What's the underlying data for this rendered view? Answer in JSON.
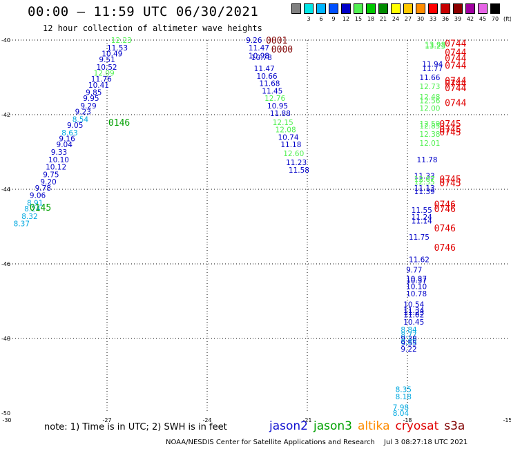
{
  "header": {
    "title": "00:00 – 11:59 UTC 06/30/2021",
    "subtitle": "12 hour collection of altimeter wave heights"
  },
  "colorbar": {
    "unit": "(ft)",
    "items": [
      {
        "label": "",
        "color": "#808080"
      },
      {
        "label": "3",
        "color": "#00e6e6"
      },
      {
        "label": "6",
        "color": "#00b4ff"
      },
      {
        "label": "9",
        "color": "#0050ff"
      },
      {
        "label": "12",
        "color": "#0000c8"
      },
      {
        "label": "15",
        "color": "#50f050"
      },
      {
        "label": "18",
        "color": "#00c800"
      },
      {
        "label": "21",
        "color": "#008c00"
      },
      {
        "label": "24",
        "color": "#ffff00"
      },
      {
        "label": "27",
        "color": "#ffc800"
      },
      {
        "label": "30",
        "color": "#ff8c00"
      },
      {
        "label": "33",
        "color": "#ff0000"
      },
      {
        "label": "36",
        "color": "#c80000"
      },
      {
        "label": "39",
        "color": "#8c0000"
      },
      {
        "label": "42",
        "color": "#a000a0"
      },
      {
        "label": "45",
        "color": "#e664e6"
      },
      {
        "label": "70",
        "color": "#000000"
      }
    ]
  },
  "note": "note:  1) Time is in UTC;  2) SWH is in feet",
  "legend": [
    {
      "name": "jason2",
      "color": "#1010d0"
    },
    {
      "name": "jason3",
      "color": "#00a000"
    },
    {
      "name": "altika",
      "color": "#ff8c00"
    },
    {
      "name": "cryosat",
      "color": "#e00000"
    },
    {
      "name": "s3a",
      "color": "#800000"
    }
  ],
  "footer": {
    "center": "NOAA/NESDIS Center for Satellite Applications and Research",
    "date": "Jul  3 08:27:18 UTC 2021"
  },
  "chart_data": {
    "type": "scatter",
    "title": "00:00 – 11:59 UTC 06/30/2021",
    "subtitle": "12 hour collection of altimeter wave heights",
    "x_ticks": [
      "-30",
      "-27",
      "-24",
      "-21",
      "-18",
      "-15"
    ],
    "y_ticks": [
      "-40",
      "-42",
      "-44",
      "-46",
      "-48",
      "-50"
    ],
    "xlim": [
      -30,
      -15
    ],
    "ylim": [
      -50,
      -40
    ],
    "grid": "dotted",
    "points": [
      {
        "lon": -26.88,
        "lat": -40.0,
        "label": "12.23"
      },
      {
        "lon": -27.0,
        "lat": -40.2,
        "label": "11.53"
      },
      {
        "lon": -27.16,
        "lat": -40.36,
        "label": "10.49"
      },
      {
        "lon": -27.24,
        "lat": -40.52,
        "label": "9.51"
      },
      {
        "lon": -27.32,
        "lat": -40.72,
        "label": "10.52"
      },
      {
        "lon": -27.4,
        "lat": -40.88,
        "label": "12.09"
      },
      {
        "lon": -27.48,
        "lat": -41.04,
        "label": "11.76"
      },
      {
        "lon": -27.56,
        "lat": -41.2,
        "label": "10.41"
      },
      {
        "lon": -27.64,
        "lat": -41.4,
        "label": "9.85"
      },
      {
        "lon": -27.72,
        "lat": -41.56,
        "label": "9.95"
      },
      {
        "lon": -27.8,
        "lat": -41.76,
        "label": "9.29"
      },
      {
        "lon": -27.96,
        "lat": -41.92,
        "label": "9.23"
      },
      {
        "lon": -28.04,
        "lat": -42.12,
        "label": "8.54"
      },
      {
        "lon": -28.2,
        "lat": -42.28,
        "label": "9.05"
      },
      {
        "lon": -28.36,
        "lat": -42.48,
        "label": "8.63"
      },
      {
        "lon": -28.44,
        "lat": -42.64,
        "label": "9.16"
      },
      {
        "lon": -28.52,
        "lat": -42.8,
        "label": "9.04"
      },
      {
        "lon": -28.68,
        "lat": -43.0,
        "label": "9.33"
      },
      {
        "lon": -28.76,
        "lat": -43.2,
        "label": "10.10"
      },
      {
        "lon": -28.84,
        "lat": -43.4,
        "label": "10.12"
      },
      {
        "lon": -28.92,
        "lat": -43.6,
        "label": "9.75"
      },
      {
        "lon": -29.0,
        "lat": -43.8,
        "label": "9.20"
      },
      {
        "lon": -29.16,
        "lat": -43.96,
        "label": "9.78"
      },
      {
        "lon": -29.32,
        "lat": -44.16,
        "label": "9.06"
      },
      {
        "lon": -29.4,
        "lat": -44.36,
        "label": "8.91"
      },
      {
        "lon": -29.48,
        "lat": -44.52,
        "label": "8.24"
      },
      {
        "lon": -29.56,
        "lat": -44.72,
        "label": "8.32"
      },
      {
        "lon": -29.8,
        "lat": -44.92,
        "label": "8.37"
      },
      {
        "lon": -22.84,
        "lat": -40.0,
        "label": "9.26"
      },
      {
        "lon": -22.76,
        "lat": -40.2,
        "label": "11.47"
      },
      {
        "lon": -22.76,
        "lat": -40.42,
        "label": "10.98"
      },
      {
        "lon": -22.68,
        "lat": -40.46,
        "label": "10.78"
      },
      {
        "lon": -22.6,
        "lat": -40.76,
        "label": "11.47"
      },
      {
        "lon": -22.52,
        "lat": -40.96,
        "label": "10.66"
      },
      {
        "lon": -22.44,
        "lat": -41.16,
        "label": "11.68"
      },
      {
        "lon": -22.36,
        "lat": -41.36,
        "label": "11.45"
      },
      {
        "lon": -22.28,
        "lat": -41.56,
        "label": "12.76"
      },
      {
        "lon": -22.2,
        "lat": -41.76,
        "label": "10.95"
      },
      {
        "lon": -22.12,
        "lat": -41.96,
        "label": "11.88"
      },
      {
        "lon": -22.04,
        "lat": -42.2,
        "label": "12.15"
      },
      {
        "lon": -21.96,
        "lat": -42.4,
        "label": "12.08"
      },
      {
        "lon": -21.88,
        "lat": -42.6,
        "label": "10.74"
      },
      {
        "lon": -21.8,
        "lat": -42.8,
        "label": "11.18"
      },
      {
        "lon": -21.72,
        "lat": -43.04,
        "label": "12.60"
      },
      {
        "lon": -21.64,
        "lat": -43.28,
        "label": "11.23"
      },
      {
        "lon": -21.56,
        "lat": -43.48,
        "label": "11.58"
      },
      {
        "lon": -17.48,
        "lat": -40.12,
        "label": "13.98"
      },
      {
        "lon": -17.48,
        "lat": -40.16,
        "label": "13.23"
      },
      {
        "lon": -17.56,
        "lat": -40.64,
        "label": "11.94"
      },
      {
        "lon": -17.56,
        "lat": -40.76,
        "label": "11.77"
      },
      {
        "lon": -17.64,
        "lat": -41.0,
        "label": "11.66"
      },
      {
        "lon": -17.64,
        "lat": -41.24,
        "label": "12.73"
      },
      {
        "lon": -17.64,
        "lat": -41.52,
        "label": "12.48"
      },
      {
        "lon": -17.64,
        "lat": -41.62,
        "label": "12.56"
      },
      {
        "lon": -17.64,
        "lat": -41.82,
        "label": "12.00"
      },
      {
        "lon": -17.64,
        "lat": -42.24,
        "label": "12.59"
      },
      {
        "lon": -17.64,
        "lat": -42.3,
        "label": "12.85"
      },
      {
        "lon": -17.64,
        "lat": -42.52,
        "label": "12.38"
      },
      {
        "lon": -17.64,
        "lat": -42.76,
        "label": "12.01"
      },
      {
        "lon": -17.72,
        "lat": -43.2,
        "label": "11.78"
      },
      {
        "lon": -17.8,
        "lat": -43.64,
        "label": "11.33"
      },
      {
        "lon": -17.8,
        "lat": -43.72,
        "label": "12.07"
      },
      {
        "lon": -17.8,
        "lat": -43.8,
        "label": "12.35"
      },
      {
        "lon": -17.8,
        "lat": -43.96,
        "label": "11.13"
      },
      {
        "lon": -17.8,
        "lat": -44.06,
        "label": "11.39"
      },
      {
        "lon": -17.88,
        "lat": -44.56,
        "label": "11.55"
      },
      {
        "lon": -17.88,
        "lat": -44.74,
        "label": "11.24"
      },
      {
        "lon": -17.88,
        "lat": -44.84,
        "label": "11.14"
      },
      {
        "lon": -17.96,
        "lat": -45.28,
        "label": "11.75"
      },
      {
        "lon": -17.96,
        "lat": -45.88,
        "label": "11.62"
      },
      {
        "lon": -18.04,
        "lat": -46.16,
        "label": "9.77"
      },
      {
        "lon": -18.04,
        "lat": -46.4,
        "label": "10.87"
      },
      {
        "lon": -18.04,
        "lat": -46.44,
        "label": "10.37"
      },
      {
        "lon": -18.04,
        "lat": -46.6,
        "label": "10.10"
      },
      {
        "lon": -18.04,
        "lat": -46.8,
        "label": "10.78"
      },
      {
        "lon": -18.12,
        "lat": -47.08,
        "label": "10.54"
      },
      {
        "lon": -18.12,
        "lat": -47.24,
        "label": "11.34"
      },
      {
        "lon": -18.12,
        "lat": -47.3,
        "label": "11.23"
      },
      {
        "lon": -18.12,
        "lat": -47.36,
        "label": "11.02"
      },
      {
        "lon": -18.12,
        "lat": -47.56,
        "label": "10.45"
      },
      {
        "lon": -18.2,
        "lat": -47.76,
        "label": "8.84"
      },
      {
        "lon": -18.2,
        "lat": -47.9,
        "label": "8.77"
      },
      {
        "lon": -18.2,
        "lat": -48.0,
        "label": "9.38"
      },
      {
        "lon": -18.2,
        "lat": -48.08,
        "label": "8.85"
      },
      {
        "lon": -18.2,
        "lat": -48.12,
        "label": "9.55"
      },
      {
        "lon": -18.2,
        "lat": -48.28,
        "label": "9.22"
      },
      {
        "lon": -18.36,
        "lat": -49.36,
        "label": "8.35"
      },
      {
        "lon": -18.36,
        "lat": -49.56,
        "label": "8.18"
      },
      {
        "lon": -18.44,
        "lat": -49.84,
        "label": "7.98"
      },
      {
        "lon": -18.44,
        "lat": -50.0,
        "label": "8.04"
      }
    ],
    "time_labels": [
      {
        "lon": -22.24,
        "lat": -40.0,
        "label": "0001"
      },
      {
        "lon": -22.08,
        "lat": -40.24,
        "label": "0000"
      },
      {
        "lon": -26.96,
        "lat": -42.2,
        "label": "0146"
      },
      {
        "lon": -29.32,
        "lat": -44.48,
        "label": "0145"
      },
      {
        "lon": -16.88,
        "lat": -40.08,
        "label": "0744"
      },
      {
        "lon": -16.88,
        "lat": -40.32,
        "label": "0744"
      },
      {
        "lon": -16.88,
        "lat": -40.48,
        "label": "0744"
      },
      {
        "lon": -16.88,
        "lat": -40.68,
        "label": "0744"
      },
      {
        "lon": -16.88,
        "lat": -41.08,
        "label": "0744"
      },
      {
        "lon": -16.88,
        "lat": -41.16,
        "label": "0744"
      },
      {
        "lon": -16.88,
        "lat": -41.28,
        "label": "0744"
      },
      {
        "lon": -16.88,
        "lat": -41.68,
        "label": "0744"
      },
      {
        "lon": -17.04,
        "lat": -42.24,
        "label": "0745"
      },
      {
        "lon": -17.04,
        "lat": -42.38,
        "label": "0745"
      },
      {
        "lon": -17.04,
        "lat": -42.46,
        "label": "0745"
      },
      {
        "lon": -17.04,
        "lat": -43.72,
        "label": "0745"
      },
      {
        "lon": -17.04,
        "lat": -43.82,
        "label": "0745"
      },
      {
        "lon": -17.2,
        "lat": -44.4,
        "label": "0746"
      },
      {
        "lon": -17.2,
        "lat": -44.52,
        "label": "0746"
      },
      {
        "lon": -17.2,
        "lat": -45.04,
        "label": "0746"
      },
      {
        "lon": -17.2,
        "lat": -45.56,
        "label": "0746"
      }
    ]
  }
}
